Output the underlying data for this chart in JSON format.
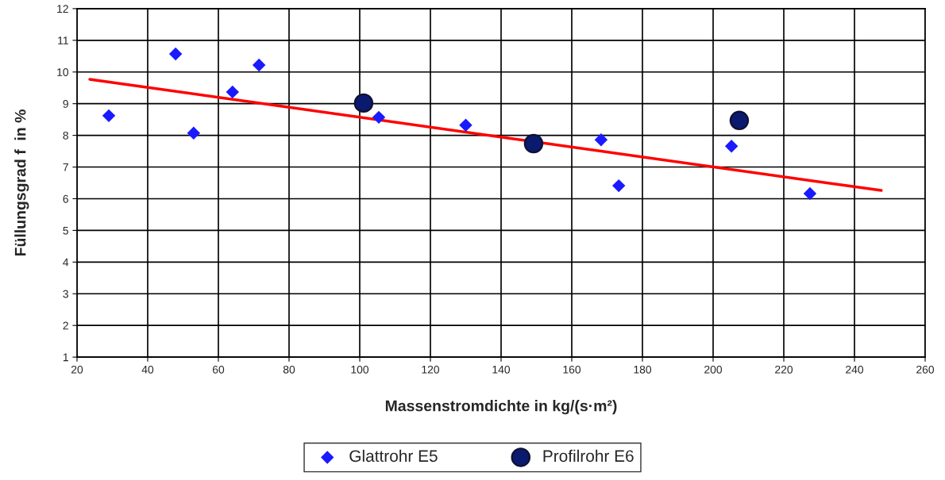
{
  "chart_data": {
    "type": "scatter",
    "xlabel": "Massenstromdichte in kg/(s·m²)",
    "ylabel": "Füllungsgrad f  in %",
    "xlim": [
      20,
      260
    ],
    "xticks": [
      20,
      40,
      60,
      80,
      100,
      120,
      140,
      160,
      180,
      200,
      220,
      240,
      260
    ],
    "ylim": [
      1,
      12
    ],
    "yticks": [
      1,
      2,
      3,
      4,
      5,
      6,
      7,
      8,
      9,
      10,
      11,
      12
    ],
    "grid": true,
    "legend": "bottom",
    "series": [
      {
        "name": "Glattrohr E5",
        "marker": "diamond",
        "color": "#1a1aff",
        "x": [
          29,
          47.9,
          53,
          64,
          71.5,
          105.4,
          130,
          168.3,
          173.3,
          205.2,
          227.4
        ],
        "values": [
          8.62,
          10.57,
          8.07,
          9.37,
          10.22,
          8.57,
          8.32,
          7.86,
          6.41,
          7.66,
          6.16
        ]
      },
      {
        "name": "Profilrohr E6",
        "marker": "circle",
        "color": "#0a1a6e",
        "x": [
          101.1,
          149.2,
          207.4
        ],
        "values": [
          9.02,
          7.74,
          8.47
        ]
      },
      {
        "type": "line",
        "color": "#ff0000",
        "x": [
          23.6,
          247.6
        ],
        "values": [
          9.77,
          6.26
        ]
      }
    ]
  }
}
